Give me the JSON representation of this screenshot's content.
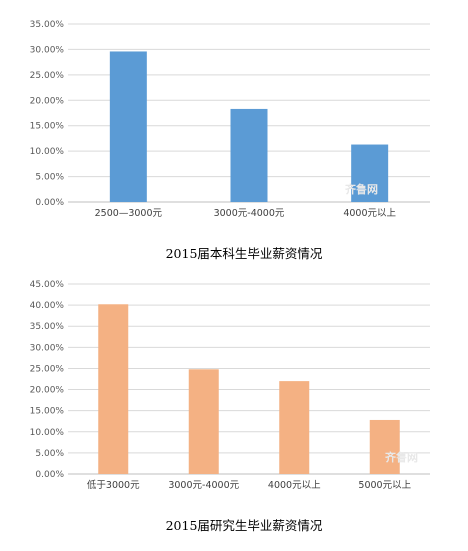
{
  "chart_data": [
    {
      "type": "bar",
      "title": "2015届本科生毕业薪资情况",
      "xlabel": "",
      "ylabel": "",
      "categories": [
        "2500—3000元",
        "3000元-4000元",
        "4000元以上"
      ],
      "values": [
        29.6,
        18.3,
        11.3
      ],
      "yticks": [
        "0.00%",
        "5.00%",
        "10.00%",
        "15.00%",
        "20.00%",
        "25.00%",
        "30.00%",
        "35.00%"
      ],
      "ylim": [
        0,
        35
      ],
      "unit": "%",
      "grid": true,
      "color": "#5b9bd5"
    },
    {
      "type": "bar",
      "title": "2015届研究生毕业薪资情况",
      "xlabel": "",
      "ylabel": "",
      "categories": [
        "低于3000元",
        "3000元-4000元",
        "4000元以上",
        "5000元以上"
      ],
      "values": [
        40.2,
        24.8,
        22.0,
        12.8
      ],
      "yticks": [
        "0.00%",
        "5.00%",
        "10.00%",
        "15.00%",
        "20.00%",
        "25.00%",
        "30.00%",
        "35.00%",
        "40.00%",
        "45.00%"
      ],
      "ylim": [
        0,
        45
      ],
      "unit": "%",
      "grid": true,
      "color": "#f4b183"
    }
  ],
  "watermarks": [
    "齐鲁网",
    "齐鲁网"
  ]
}
